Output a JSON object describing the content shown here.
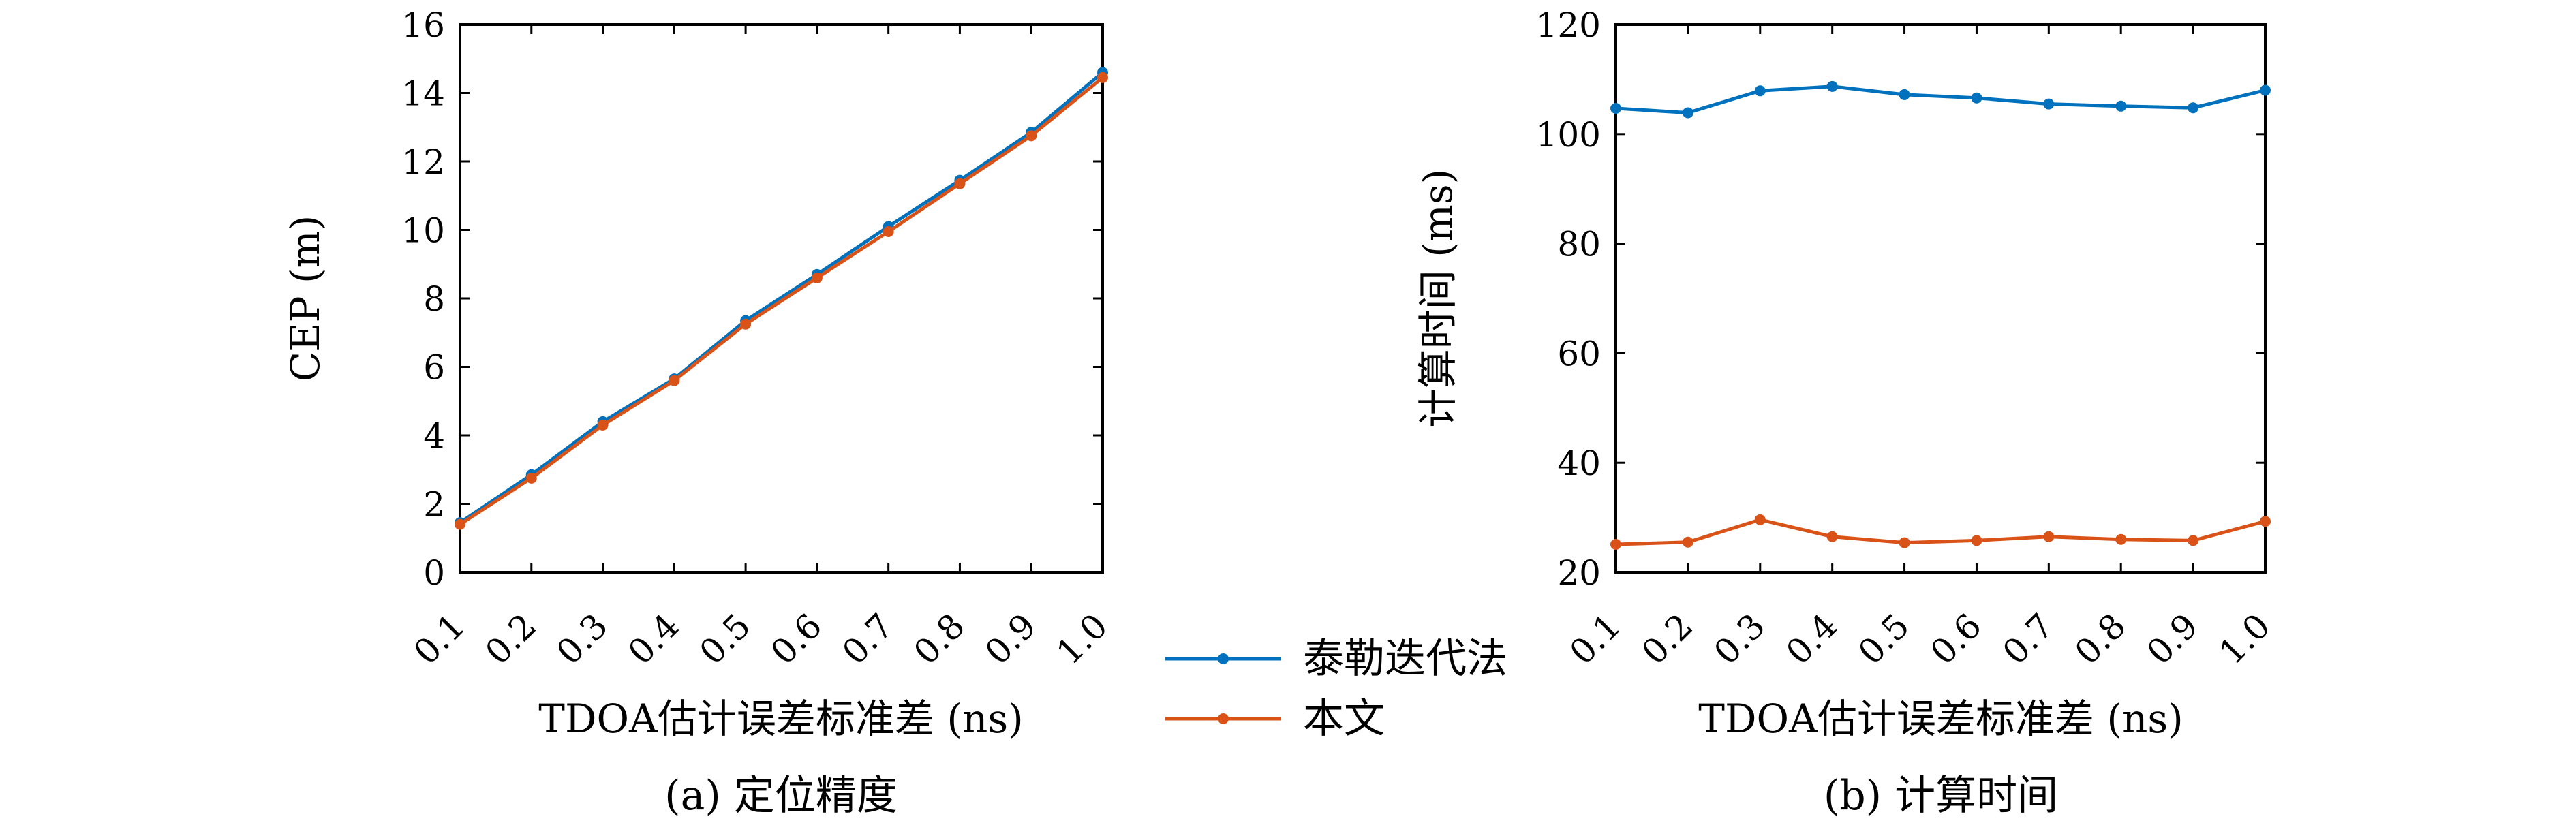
{
  "legend": {
    "series": [
      {
        "name": "泰勒迭代法",
        "color": "#0072BD"
      },
      {
        "name": "本文",
        "color": "#D95319"
      }
    ]
  },
  "captions": {
    "a": "(a) 定位精度",
    "b": "(b) 计算时间"
  },
  "chart_data": [
    {
      "type": "line",
      "title": "",
      "xlabel": "TDOA估计误差标准差 (ns)",
      "ylabel": "CEP (m)",
      "x": [
        0.1,
        0.2,
        0.3,
        0.4,
        0.5,
        0.6,
        0.7,
        0.8,
        0.9,
        1.0
      ],
      "x_tick_labels": [
        "0.1",
        "0.2",
        "0.3",
        "0.4",
        "0.5",
        "0.6",
        "0.7",
        "0.8",
        "0.9",
        "1.0"
      ],
      "ylim": [
        0,
        16
      ],
      "y_ticks": [
        0,
        2,
        4,
        6,
        8,
        10,
        12,
        14,
        16
      ],
      "grid": false,
      "series": [
        {
          "name": "泰勒迭代法",
          "color": "#0072BD",
          "values": [
            1.45,
            2.85,
            4.4,
            5.65,
            7.35,
            8.7,
            10.1,
            11.45,
            12.85,
            14.6
          ]
        },
        {
          "name": "本文",
          "color": "#D95319",
          "values": [
            1.4,
            2.75,
            4.3,
            5.6,
            7.25,
            8.6,
            9.95,
            11.35,
            12.75,
            14.45
          ]
        }
      ]
    },
    {
      "type": "line",
      "title": "",
      "xlabel": "TDOA估计误差标准差 (ns)",
      "ylabel": "计算时间 (ms)",
      "x": [
        0.1,
        0.2,
        0.3,
        0.4,
        0.5,
        0.6,
        0.7,
        0.8,
        0.9,
        1.0
      ],
      "x_tick_labels": [
        "0.1",
        "0.2",
        "0.3",
        "0.4",
        "0.5",
        "0.6",
        "0.7",
        "0.8",
        "0.9",
        "1.0"
      ],
      "ylim": [
        20,
        120
      ],
      "y_ticks": [
        20,
        40,
        60,
        80,
        100,
        120
      ],
      "grid": false,
      "series": [
        {
          "name": "泰勒迭代法",
          "color": "#0072BD",
          "values": [
            104.7,
            103.9,
            107.9,
            108.7,
            107.2,
            106.6,
            105.5,
            105.1,
            104.8,
            108.0
          ]
        },
        {
          "name": "本文",
          "color": "#D95319",
          "values": [
            25.1,
            25.5,
            29.6,
            26.5,
            25.4,
            25.8,
            26.5,
            26.0,
            25.8,
            29.3
          ]
        }
      ]
    }
  ]
}
